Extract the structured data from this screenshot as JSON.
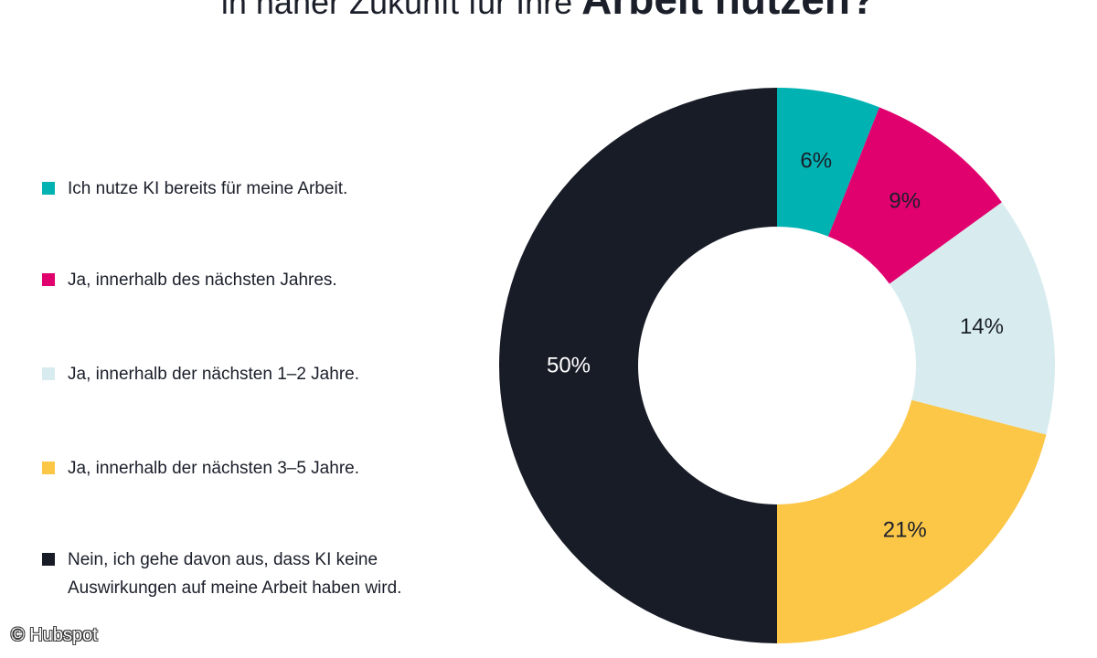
{
  "title": {
    "regular": "in naher Zukunft für Ihre ",
    "bold": "Arbeit nutzen?"
  },
  "credit": "© Hubspot",
  "chart_data": {
    "type": "pie",
    "donut": true,
    "categories": [
      "Ich nutze KI bereits für meine Arbeit.",
      "Ja, innerhalb des nächsten Jahres.",
      "Ja, innerhalb der nächsten 1–2 Jahre.",
      "Ja, innerhalb der nächsten 3–5 Jahre.",
      "Nein, ich gehe davon aus, dass KI keine Auswirkungen auf meine Arbeit haben wird."
    ],
    "values": [
      6,
      9,
      14,
      21,
      50
    ],
    "labels": [
      "6%",
      "9%",
      "14%",
      "21%",
      "50%"
    ],
    "colors": [
      "#00b2b2",
      "#e0006e",
      "#d8ecef",
      "#fcc647",
      "#181c27"
    ],
    "label_colors": [
      "#1b1f2a",
      "#1b1f2a",
      "#1b1f2a",
      "#1b1f2a",
      "#ffffff"
    ],
    "legend_placement": "left"
  }
}
